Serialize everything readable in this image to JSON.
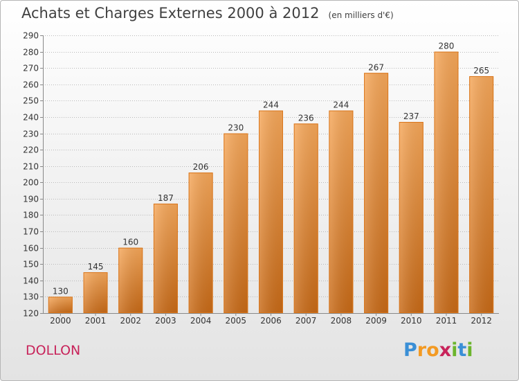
{
  "title": "Achats et Charges Externes 2000 à 2012",
  "subtitle": "(en milliers d'€)",
  "city": "DOLLON",
  "logo": {
    "text": "Proxiti",
    "letters": [
      {
        "char": "P",
        "color": "#3a8fd6"
      },
      {
        "char": "r",
        "color": "#f39a23"
      },
      {
        "char": "o",
        "color": "#f39a23"
      },
      {
        "char": "x",
        "color": "#c8235a"
      },
      {
        "char": "i",
        "color": "#6cb52d"
      },
      {
        "char": "t",
        "color": "#3a8fd6"
      },
      {
        "char": "i",
        "color": "#6cb52d"
      }
    ]
  },
  "colors": {
    "bar": "#f08a2c",
    "bar_light": "#f7a85a",
    "bar_dark": "#c96a16",
    "grid": "#b9b9b9",
    "text": "#333333"
  },
  "chart_data": {
    "type": "bar",
    "categories": [
      "2000",
      "2001",
      "2002",
      "2003",
      "2004",
      "2005",
      "2006",
      "2007",
      "2008",
      "2009",
      "2010",
      "2011",
      "2012"
    ],
    "values": [
      130,
      145,
      160,
      187,
      206,
      230,
      244,
      236,
      244,
      267,
      237,
      280,
      265
    ],
    "data_labels": [
      "130",
      "145",
      "160",
      "187",
      "206",
      "230",
      "244",
      "236",
      "244",
      "267",
      "237",
      "280",
      "265"
    ],
    "ylim": [
      120,
      290
    ],
    "yticks": [
      120,
      130,
      140,
      150,
      160,
      170,
      180,
      190,
      200,
      210,
      220,
      230,
      240,
      250,
      260,
      270,
      280,
      290
    ],
    "grid": true
  }
}
